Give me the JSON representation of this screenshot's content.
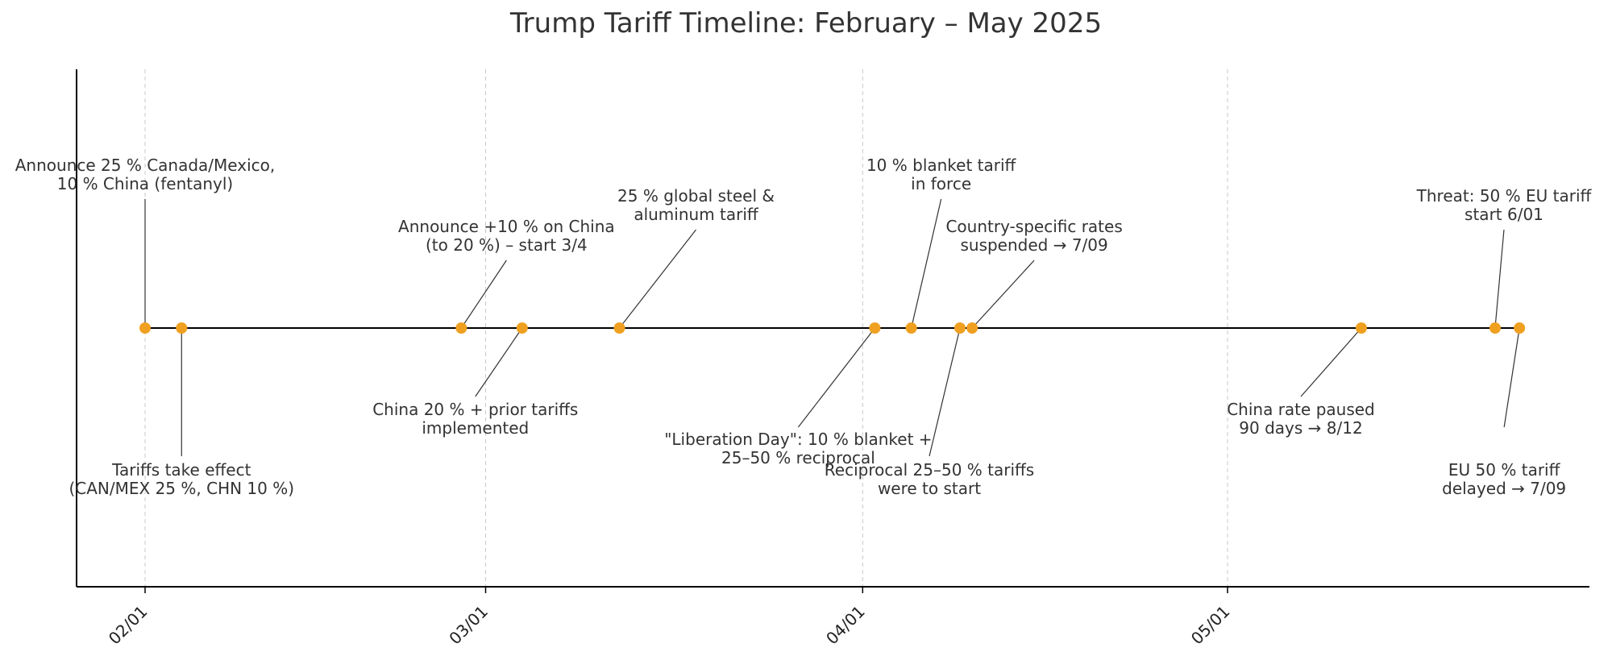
{
  "chart_data": {
    "type": "timeline",
    "title": "Trump Tariff Timeline: February – May 2025",
    "x_ticks": [
      {
        "date": "2025-02-01",
        "label": "02/01"
      },
      {
        "date": "2025-03-01",
        "label": "03/01"
      },
      {
        "date": "2025-04-01",
        "label": "04/01"
      },
      {
        "date": "2025-05-01",
        "label": "05/01"
      }
    ],
    "xlim": [
      "2025-01-26",
      "2025-06-06"
    ],
    "grid": "vertical dashed at ticks",
    "marker_color": "#f0a020",
    "events": [
      {
        "date": "2025-02-01",
        "side": "above",
        "lines": [
          "Announce 25 % Canada/Mexico,",
          "10 % China (fentanyl)"
        ]
      },
      {
        "date": "2025-02-04",
        "side": "below",
        "lines": [
          "Tariffs take effect",
          "(CAN/MEX 25 %, CHN 10 %)"
        ]
      },
      {
        "date": "2025-02-27",
        "side": "above",
        "lines": [
          "Announce +10 % on China",
          "(to 20 %) – start 3/4"
        ]
      },
      {
        "date": "2025-03-04",
        "side": "below",
        "lines": [
          "China 20 % + prior tariffs",
          "implemented"
        ]
      },
      {
        "date": "2025-03-12",
        "side": "above",
        "lines": [
          "25 % global steel &",
          "aluminum tariff"
        ]
      },
      {
        "date": "2025-04-02",
        "side": "below",
        "lines": [
          "\"Liberation Day\": 10 % blanket +",
          "25–50 % reciprocal"
        ]
      },
      {
        "date": "2025-04-05",
        "side": "above",
        "lines": [
          "10 % blanket tariff",
          "in force"
        ]
      },
      {
        "date": "2025-04-09",
        "side": "below",
        "lines": [
          "Reciprocal 25–50 % tariffs",
          "were to start"
        ]
      },
      {
        "date": "2025-04-10",
        "side": "above",
        "lines": [
          "Country-specific rates",
          "suspended → 7/09"
        ]
      },
      {
        "date": "2025-05-12",
        "side": "below",
        "lines": [
          "China rate paused",
          "90 days → 8/12"
        ]
      },
      {
        "date": "2025-05-23",
        "side": "above",
        "lines": [
          "Threat: 50 % EU tariff",
          "start 6/01"
        ]
      },
      {
        "date": "2025-05-25",
        "side": "below",
        "lines": [
          "EU 50 % tariff",
          "delayed → 7/09"
        ]
      }
    ]
  }
}
